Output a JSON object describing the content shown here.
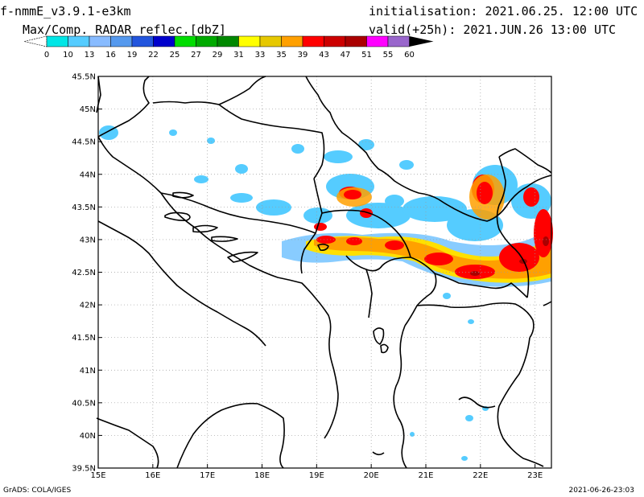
{
  "header": {
    "model": "f-nmmE_v3.9.1-e3km",
    "product": "Max/Comp. RADAR reflec.[dbZ]",
    "initialisation": "initialisation: 2021.06.25. 12:00 UTC",
    "valid": "valid(+25h): 2021.JUN.26 13:00 UTC"
  },
  "colorbar": {
    "labels": [
      "0",
      "10",
      "13",
      "16",
      "19",
      "22",
      "25",
      "27",
      "29",
      "31",
      "33",
      "35",
      "39",
      "43",
      "47",
      "51",
      "55",
      "60"
    ],
    "colors": [
      "#ffffff",
      "#00e6e6",
      "#55ccff",
      "#88bbff",
      "#5599ee",
      "#2255dd",
      "#0000cc",
      "#00dd00",
      "#00aa00",
      "#008800",
      "#ffff00",
      "#e6c800",
      "#ffa000",
      "#ff0000",
      "#cc0000",
      "#aa0000",
      "#ff00ff",
      "#9966cc",
      "#000000"
    ]
  },
  "map": {
    "x_labels": [
      "15E",
      "16E",
      "17E",
      "18E",
      "19E",
      "20E",
      "21E",
      "22E",
      "23E"
    ],
    "y_labels": [
      "45.5N",
      "45N",
      "44.5N",
      "44N",
      "43.5N",
      "43N",
      "42.5N",
      "42N",
      "41.5N",
      "41N",
      "40.5N",
      "40N",
      "39.5N"
    ],
    "lon_range": [
      15,
      23.3
    ],
    "lat_range": [
      39.5,
      45.5
    ],
    "grid": "dotted"
  },
  "footer": {
    "left": "GrADS: COLA/IGES",
    "right": "2021-06-26-23:03"
  }
}
